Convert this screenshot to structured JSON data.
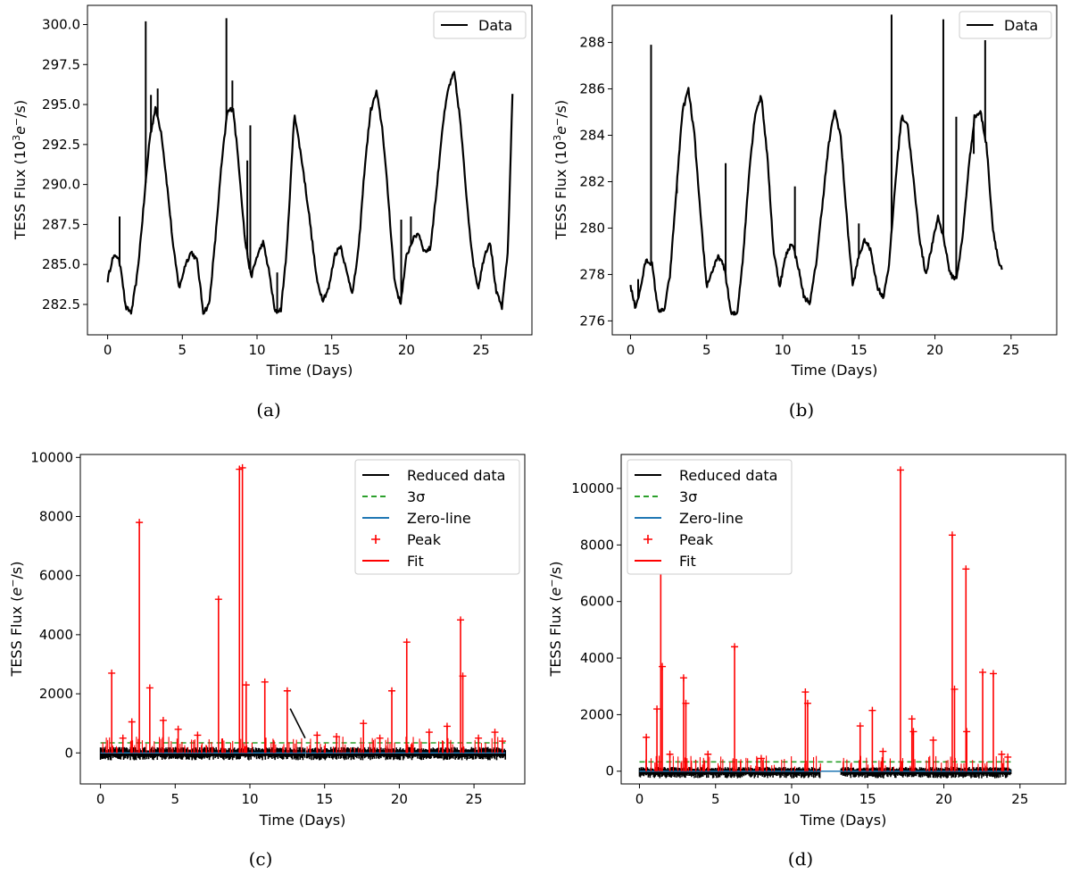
{
  "chart_data": [
    {
      "id": "a",
      "type": "line",
      "caption": "(a)",
      "xlabel": "Time (Days)",
      "ylabel_main": "TESS Flux (10",
      "ylabel_sup1": "3",
      "ylabel_mid": "e",
      "ylabel_sup2": "−",
      "ylabel_end": "/s)",
      "xlim": [
        -1.35,
        28.4
      ],
      "ylim": [
        280.6,
        301.2
      ],
      "xticks": [
        0,
        5,
        10,
        15,
        20,
        25
      ],
      "yticks": [
        282.5,
        285.0,
        287.5,
        290.0,
        292.5,
        295.0,
        297.5,
        300.0
      ],
      "ytick_labels": [
        "282.5",
        "285.0",
        "287.5",
        "290.0",
        "292.5",
        "295.0",
        "297.5",
        "300.0"
      ],
      "legend": [
        {
          "label": "Data",
          "style": "line",
          "color": "#000000"
        }
      ],
      "legend_position": "top-right",
      "series": [
        {
          "name": "Data",
          "color": "#000000",
          "x": [
            0,
            0.3,
            0.6,
            0.9,
            1.2,
            1.6,
            2.0,
            2.4,
            2.8,
            3.2,
            3.6,
            4.0,
            4.4,
            4.8,
            5.2,
            5.6,
            6.0,
            6.4,
            6.8,
            7.2,
            7.6,
            8.0,
            8.4,
            8.8,
            9.2,
            9.6,
            10.0,
            10.4,
            10.8,
            11.2,
            11.6,
            12.0,
            12.5,
            13.0,
            13.5,
            14.0,
            14.4,
            14.8,
            15.2,
            15.6,
            16.0,
            16.4,
            16.8,
            17.2,
            17.6,
            18.0,
            18.4,
            18.8,
            19.2,
            19.6,
            20.0,
            20.4,
            20.8,
            21.2,
            21.6,
            22.0,
            22.4,
            22.8,
            23.2,
            23.6,
            24.0,
            24.4,
            24.8,
            25.2,
            25.6,
            26.0,
            26.4,
            26.8,
            27.1
          ],
          "values": [
            284.0,
            285.3,
            285.6,
            284.8,
            282.3,
            282.0,
            284.5,
            288.5,
            292.8,
            294.8,
            293.2,
            289.8,
            286.0,
            283.5,
            285.0,
            285.8,
            285.2,
            282.0,
            282.5,
            286.5,
            291.0,
            294.5,
            294.8,
            291.0,
            286.5,
            284.2,
            285.5,
            286.4,
            284.6,
            282.0,
            282.2,
            286.0,
            294.5,
            291.5,
            288.0,
            284.0,
            282.8,
            283.5,
            285.6,
            286.2,
            284.5,
            283.2,
            286.0,
            291.0,
            294.6,
            295.8,
            293.4,
            289.0,
            284.0,
            282.5,
            285.5,
            286.5,
            287.0,
            285.8,
            286.0,
            289.5,
            293.5,
            296.0,
            297.0,
            294.0,
            289.5,
            285.5,
            283.5,
            285.5,
            286.5,
            283.3,
            282.3,
            286.0,
            295.8
          ]
        }
      ],
      "spikes": [
        {
          "x": 0.8,
          "y": 288.0
        },
        {
          "x": 2.55,
          "y": 300.2
        },
        {
          "x": 2.9,
          "y": 295.6
        },
        {
          "x": 3.35,
          "y": 296.0
        },
        {
          "x": 7.95,
          "y": 300.4
        },
        {
          "x": 8.35,
          "y": 296.5
        },
        {
          "x": 9.35,
          "y": 291.5
        },
        {
          "x": 9.55,
          "y": 293.7
        },
        {
          "x": 11.35,
          "y": 284.5
        },
        {
          "x": 19.65,
          "y": 287.8
        },
        {
          "x": 20.3,
          "y": 288.0
        }
      ]
    },
    {
      "id": "b",
      "type": "line",
      "caption": "(b)",
      "xlabel": "Time (Days)",
      "ylabel_main": "TESS Flux (10",
      "ylabel_sup1": "3",
      "ylabel_mid": "e",
      "ylabel_sup2": "−",
      "ylabel_end": "/s)",
      "xlim": [
        -1.2,
        28.0
      ],
      "ylim": [
        275.4,
        289.6
      ],
      "xticks": [
        0,
        5,
        10,
        15,
        20,
        25
      ],
      "yticks": [
        276,
        278,
        280,
        282,
        284,
        286,
        288
      ],
      "ytick_labels": [
        "276",
        "278",
        "280",
        "282",
        "284",
        "286",
        "288"
      ],
      "legend": [
        {
          "label": "Data",
          "style": "line",
          "color": "#000000"
        }
      ],
      "legend_position": "top-right",
      "series": [
        {
          "name": "Data",
          "color": "#000000",
          "x": [
            0,
            0.3,
            0.6,
            1.0,
            1.4,
            1.8,
            2.2,
            2.6,
            3.0,
            3.4,
            3.8,
            4.2,
            4.6,
            5.0,
            5.4,
            5.8,
            6.2,
            6.6,
            7.0,
            7.4,
            7.8,
            8.2,
            8.6,
            9.0,
            9.4,
            9.8,
            10.2,
            10.6,
            11.0,
            11.4,
            11.8,
            12.2,
            12.6,
            13.0,
            13.4,
            13.8,
            14.2,
            14.6,
            15.0,
            15.4,
            15.8,
            16.2,
            16.6,
            17.0,
            17.4,
            17.8,
            18.2,
            18.6,
            19.0,
            19.4,
            19.8,
            20.2,
            20.6,
            21.0,
            21.4,
            21.8,
            22.2,
            22.6,
            23.0,
            23.4,
            23.8,
            24.2,
            24.4
          ],
          "values": [
            277.5,
            276.6,
            277.2,
            278.6,
            278.5,
            276.5,
            276.4,
            278.0,
            281.5,
            285.0,
            286.0,
            284.0,
            280.5,
            277.5,
            278.2,
            278.8,
            278.2,
            276.3,
            276.3,
            278.8,
            282.5,
            285.0,
            285.7,
            283.0,
            279.0,
            277.5,
            278.8,
            279.4,
            278.4,
            277.0,
            276.8,
            278.5,
            281.0,
            283.5,
            285.1,
            284.0,
            280.5,
            277.5,
            278.8,
            279.5,
            279.0,
            277.5,
            277.0,
            278.5,
            282.0,
            284.8,
            284.5,
            282.0,
            279.5,
            278.0,
            279.2,
            280.5,
            279.5,
            278.0,
            277.8,
            279.5,
            282.5,
            284.8,
            285.0,
            283.5,
            280.0,
            278.5,
            278.2
          ]
        }
      ],
      "spikes": [
        {
          "x": 0.5,
          "y": 277.8
        },
        {
          "x": 1.35,
          "y": 287.9
        },
        {
          "x": 3.05,
          "y": 281.5
        },
        {
          "x": 6.25,
          "y": 282.8
        },
        {
          "x": 10.8,
          "y": 281.8
        },
        {
          "x": 15.0,
          "y": 280.2
        },
        {
          "x": 17.15,
          "y": 289.2
        },
        {
          "x": 20.55,
          "y": 289.0
        },
        {
          "x": 21.4,
          "y": 284.8
        },
        {
          "x": 22.55,
          "y": 283.2
        },
        {
          "x": 23.3,
          "y": 288.1
        }
      ]
    },
    {
      "id": "c",
      "type": "line",
      "caption": "(c)",
      "xlabel": "Time (Days)",
      "ylabel_main": "TESS Flux (",
      "ylabel_sup1": "",
      "ylabel_mid": "e",
      "ylabel_sup2": "−",
      "ylabel_end": "/s)",
      "xlim": [
        -1.35,
        28.4
      ],
      "ylim": [
        -1050,
        10100
      ],
      "xticks": [
        0,
        5,
        10,
        15,
        20,
        25
      ],
      "yticks": [
        0,
        2000,
        4000,
        6000,
        8000,
        10000
      ],
      "ytick_labels": [
        "0",
        "2000",
        "4000",
        "6000",
        "8000",
        "10000"
      ],
      "legend": [
        {
          "label": "Reduced data",
          "style": "line",
          "color": "#000000"
        },
        {
          "label": "3σ",
          "style": "dashed",
          "color": "#2ca02c"
        },
        {
          "label": "Zero-line",
          "style": "line",
          "color": "#1f77b4"
        },
        {
          "label": "Peak",
          "style": "plus",
          "color": "#ff0000"
        },
        {
          "label": "Fit",
          "style": "line",
          "color": "#ff0000"
        }
      ],
      "legend_position": "top-right",
      "threshold_3sigma": 340,
      "zero_line": 0,
      "data_range": [
        0,
        27.1
      ],
      "gap": [
        13.7,
        13.75
      ],
      "ramp": {
        "x0": 12.7,
        "y0": 1500,
        "x1": 13.7,
        "y1": 500
      },
      "noise_band": [
        -250,
        200
      ],
      "peaks": [
        {
          "x": 0.75,
          "y": 2700
        },
        {
          "x": 2.6,
          "y": 7800
        },
        {
          "x": 3.3,
          "y": 2200
        },
        {
          "x": 4.2,
          "y": 1100
        },
        {
          "x": 7.9,
          "y": 5200
        },
        {
          "x": 9.3,
          "y": 9600
        },
        {
          "x": 9.5,
          "y": 9650
        },
        {
          "x": 9.75,
          "y": 2300
        },
        {
          "x": 11.0,
          "y": 2400
        },
        {
          "x": 12.5,
          "y": 2100
        },
        {
          "x": 17.6,
          "y": 1000
        },
        {
          "x": 19.5,
          "y": 2100
        },
        {
          "x": 20.5,
          "y": 3750
        },
        {
          "x": 24.1,
          "y": 4500
        },
        {
          "x": 24.25,
          "y": 2600
        },
        {
          "x": 1.5,
          "y": 500
        },
        {
          "x": 2.1,
          "y": 1050
        },
        {
          "x": 5.2,
          "y": 800
        },
        {
          "x": 6.5,
          "y": 600
        },
        {
          "x": 14.5,
          "y": 600
        },
        {
          "x": 15.8,
          "y": 550
        },
        {
          "x": 18.7,
          "y": 500
        },
        {
          "x": 22.0,
          "y": 700
        },
        {
          "x": 23.2,
          "y": 900
        },
        {
          "x": 25.3,
          "y": 500
        },
        {
          "x": 26.4,
          "y": 700
        },
        {
          "x": 26.9,
          "y": 400
        }
      ]
    },
    {
      "id": "d",
      "type": "line",
      "caption": "(d)",
      "xlabel": "Time (Days)",
      "ylabel_main": "TESS Flux (",
      "ylabel_sup1": "",
      "ylabel_mid": "e",
      "ylabel_sup2": "−",
      "ylabel_end": "/s)",
      "xlim": [
        -1.2,
        28.0
      ],
      "ylim": [
        -450,
        11200
      ],
      "xticks": [
        0,
        5,
        10,
        15,
        20,
        25
      ],
      "yticks": [
        0,
        2000,
        4000,
        6000,
        8000,
        10000
      ],
      "ytick_labels": [
        "0",
        "2000",
        "4000",
        "6000",
        "8000",
        "10000"
      ],
      "legend": [
        {
          "label": "Reduced data",
          "style": "line",
          "color": "#000000"
        },
        {
          "label": "3σ",
          "style": "dashed",
          "color": "#2ca02c"
        },
        {
          "label": "Zero-line",
          "style": "line",
          "color": "#1f77b4"
        },
        {
          "label": "Peak",
          "style": "plus",
          "color": "#ff0000"
        },
        {
          "label": "Fit",
          "style": "line",
          "color": "#ff0000"
        }
      ],
      "legend_position": "top-left",
      "threshold_3sigma": 330,
      "zero_line": 0,
      "data_range": [
        0,
        24.4
      ],
      "gap": [
        11.9,
        13.2
      ],
      "ramp": null,
      "noise_band": [
        -250,
        150
      ],
      "peaks": [
        {
          "x": 0.45,
          "y": 1200
        },
        {
          "x": 1.15,
          "y": 2200
        },
        {
          "x": 1.4,
          "y": 9500
        },
        {
          "x": 1.5,
          "y": 3700
        },
        {
          "x": 2.9,
          "y": 3300
        },
        {
          "x": 3.05,
          "y": 2400
        },
        {
          "x": 6.25,
          "y": 4400
        },
        {
          "x": 10.9,
          "y": 2800
        },
        {
          "x": 11.05,
          "y": 2400
        },
        {
          "x": 15.3,
          "y": 2150
        },
        {
          "x": 17.15,
          "y": 10650
        },
        {
          "x": 17.9,
          "y": 1850
        },
        {
          "x": 20.55,
          "y": 8350
        },
        {
          "x": 20.7,
          "y": 2900
        },
        {
          "x": 21.45,
          "y": 7150
        },
        {
          "x": 22.55,
          "y": 3500
        },
        {
          "x": 23.25,
          "y": 3450
        },
        {
          "x": 18.0,
          "y": 1400
        },
        {
          "x": 19.3,
          "y": 1100
        },
        {
          "x": 21.5,
          "y": 1400
        },
        {
          "x": 2.0,
          "y": 600
        },
        {
          "x": 4.5,
          "y": 600
        },
        {
          "x": 8.0,
          "y": 450
        },
        {
          "x": 14.5,
          "y": 1600
        },
        {
          "x": 16.0,
          "y": 700
        },
        {
          "x": 23.8,
          "y": 600
        },
        {
          "x": 24.2,
          "y": 500
        }
      ]
    }
  ]
}
